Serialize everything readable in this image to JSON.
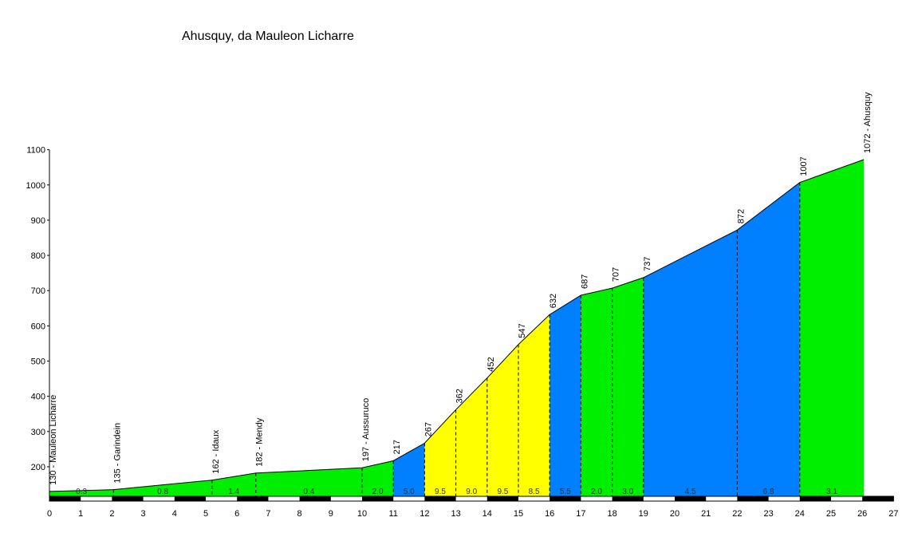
{
  "chart_data": {
    "type": "area",
    "title": "Ahusquy, da Mauleon Licharre",
    "xlim": [
      0,
      27
    ],
    "ylim": [
      115,
      1100
    ],
    "x_ticks": [
      0,
      1,
      2,
      3,
      4,
      5,
      6,
      7,
      8,
      9,
      10,
      11,
      12,
      13,
      14,
      15,
      16,
      17,
      18,
      19,
      20,
      21,
      22,
      23,
      24,
      25,
      26,
      27
    ],
    "y_ticks": [
      200,
      300,
      400,
      500,
      600,
      700,
      800,
      900,
      1000,
      1100
    ],
    "profile": [
      {
        "x": 0,
        "y": 130
      },
      {
        "x": 2.05,
        "y": 135
      },
      {
        "x": 5.2,
        "y": 162
      },
      {
        "x": 6.6,
        "y": 182
      },
      {
        "x": 10,
        "y": 197
      },
      {
        "x": 11,
        "y": 217
      },
      {
        "x": 12,
        "y": 267
      },
      {
        "x": 13,
        "y": 362
      },
      {
        "x": 14,
        "y": 452
      },
      {
        "x": 15,
        "y": 547
      },
      {
        "x": 16,
        "y": 632
      },
      {
        "x": 17,
        "y": 687
      },
      {
        "x": 18,
        "y": 707
      },
      {
        "x": 19,
        "y": 737
      },
      {
        "x": 22,
        "y": 872
      },
      {
        "x": 24,
        "y": 1007
      },
      {
        "x": 26.05,
        "y": 1072
      }
    ],
    "segments": [
      {
        "from": 0,
        "to": 2.05,
        "grade": "0.3",
        "color": "#00ee00"
      },
      {
        "from": 2.05,
        "to": 5.2,
        "grade": "0.8",
        "color": "#00ee00"
      },
      {
        "from": 5.2,
        "to": 6.6,
        "grade": "1.4",
        "color": "#00ee00"
      },
      {
        "from": 6.6,
        "to": 10,
        "grade": "0.4",
        "color": "#00ee00"
      },
      {
        "from": 10,
        "to": 11,
        "grade": "2.0",
        "color": "#00ee00"
      },
      {
        "from": 11,
        "to": 12,
        "grade": "5.0",
        "color": "#0080ff"
      },
      {
        "from": 12,
        "to": 13,
        "grade": "9.5",
        "color": "#ffff00"
      },
      {
        "from": 13,
        "to": 14,
        "grade": "9.0",
        "color": "#ffff00"
      },
      {
        "from": 14,
        "to": 15,
        "grade": "9.5",
        "color": "#ffff00"
      },
      {
        "from": 15,
        "to": 16,
        "grade": "8.5",
        "color": "#ffff00"
      },
      {
        "from": 16,
        "to": 17,
        "grade": "5.5",
        "color": "#0080ff"
      },
      {
        "from": 17,
        "to": 18,
        "grade": "2.0",
        "color": "#00ee00"
      },
      {
        "from": 18,
        "to": 19,
        "grade": "3.0",
        "color": "#00ee00"
      },
      {
        "from": 19,
        "to": 22,
        "grade": "4.5",
        "color": "#0080ff"
      },
      {
        "from": 22,
        "to": 24,
        "grade": "6.8",
        "color": "#0080ff"
      },
      {
        "from": 24,
        "to": 26.05,
        "grade": "3.1",
        "color": "#00ee00"
      }
    ],
    "waypoints": [
      {
        "x": 0,
        "y": 130,
        "label": "130 - Mauleon Licharre"
      },
      {
        "x": 2.05,
        "y": 135,
        "label": "135 - Garindein"
      },
      {
        "x": 5.2,
        "y": 162,
        "label": "162 - Idaux"
      },
      {
        "x": 6.6,
        "y": 182,
        "label": "182 - Mendy"
      },
      {
        "x": 10,
        "y": 197,
        "label": "197 - Aussuruco"
      },
      {
        "x": 11,
        "y": 217,
        "label": "217"
      },
      {
        "x": 12,
        "y": 267,
        "label": "267"
      },
      {
        "x": 13,
        "y": 362,
        "label": "362"
      },
      {
        "x": 14,
        "y": 452,
        "label": "452"
      },
      {
        "x": 15,
        "y": 547,
        "label": "547"
      },
      {
        "x": 16,
        "y": 632,
        "label": "632"
      },
      {
        "x": 17,
        "y": 687,
        "label": "687"
      },
      {
        "x": 18,
        "y": 707,
        "label": "707"
      },
      {
        "x": 19,
        "y": 737,
        "label": "737"
      },
      {
        "x": 22,
        "y": 872,
        "label": "872"
      },
      {
        "x": 24,
        "y": 1007,
        "label": "1007"
      },
      {
        "x": 26.05,
        "y": 1072,
        "label": "1072 - Ahusquy"
      }
    ],
    "grid": false,
    "legend": "none"
  }
}
